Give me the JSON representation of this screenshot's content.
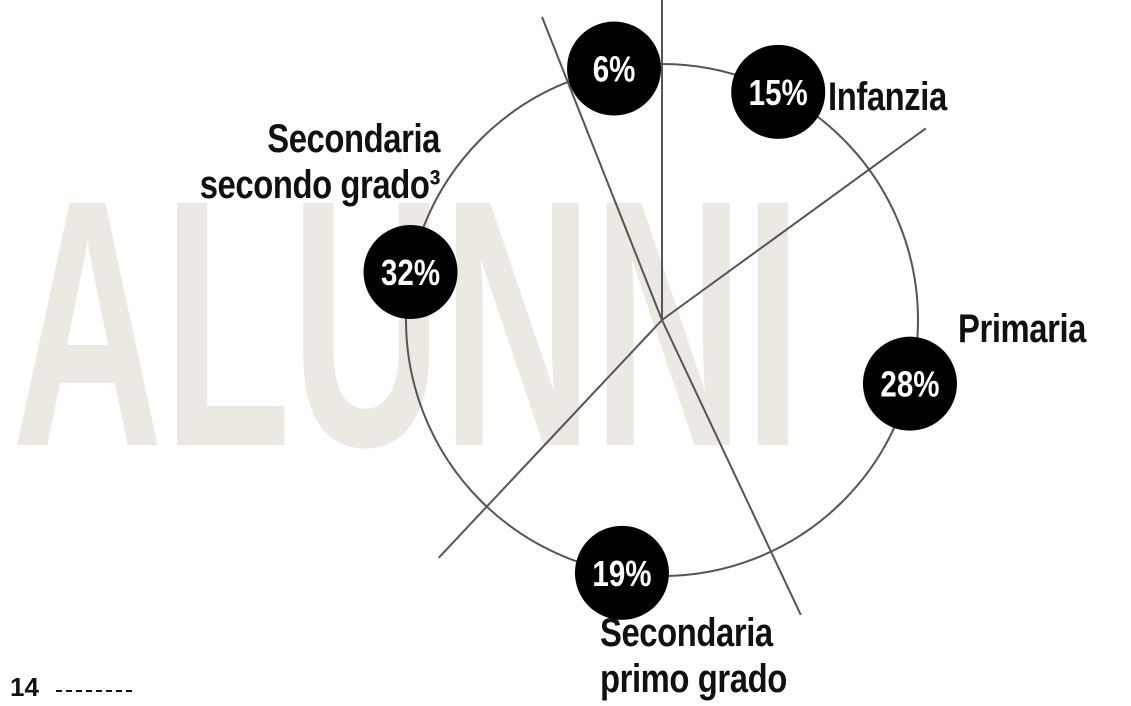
{
  "chart_data": {
    "type": "pie",
    "title": "ALUNNI",
    "categories": [
      "Infanzia",
      "Primaria",
      "Secondaria primo grado",
      "Secondaria secondo grado³",
      null
    ],
    "values": [
      15,
      28,
      19,
      32,
      6
    ],
    "value_labels": [
      "15%",
      "28%",
      "19%",
      "32%",
      "6%"
    ]
  },
  "page_number": "14"
}
